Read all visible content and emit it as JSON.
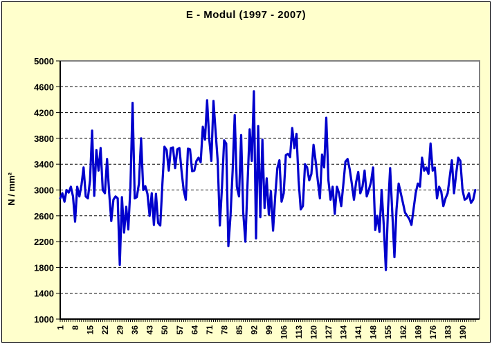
{
  "window": {
    "title": "E - Modul (1997 - 2007)"
  },
  "chart_data": {
    "type": "line",
    "title": "E - Modul (1997 - 2007)",
    "xlabel": "",
    "ylabel": "N / mm²",
    "ylim": [
      1000,
      5000
    ],
    "ytick_step": 400,
    "ytick_labels": [
      "1000",
      "1400",
      "1800",
      "2200",
      "2600",
      "3000",
      "3400",
      "3800",
      "4200",
      "4600",
      "5000"
    ],
    "xtick_interval": 7,
    "xtick_labels": [
      "1",
      "8",
      "15",
      "22",
      "29",
      "36",
      "43",
      "50",
      "57",
      "64",
      "71",
      "78",
      "85",
      "92",
      "99",
      "106",
      "113",
      "120",
      "127",
      "134",
      "141",
      "148",
      "155",
      "162",
      "169",
      "176",
      "183",
      "190"
    ],
    "n_points": 196,
    "grid": "horizontal-dashed",
    "legend": "none",
    "series_color": "#0000CC",
    "background_color": "#FFFFCC",
    "plot_background_color": "#FFFFFF",
    "plot_border_color": "#808080",
    "axis_color": "#000000",
    "values": [
      2870,
      2950,
      2820,
      3000,
      2960,
      3050,
      2900,
      2510,
      3050,
      2900,
      3080,
      3350,
      2900,
      2870,
      3150,
      3920,
      2910,
      3620,
      3300,
      3650,
      3000,
      2950,
      3480,
      2950,
      2520,
      2850,
      2900,
      2870,
      1840,
      2890,
      2340,
      2740,
      2390,
      3050,
      4350,
      2870,
      2890,
      3100,
      3800,
      3000,
      3060,
      2940,
      2600,
      2950,
      2460,
      2940,
      2490,
      2450,
      3100,
      3670,
      3620,
      3300,
      3650,
      3660,
      3340,
      3630,
      3650,
      3300,
      3000,
      2850,
      3640,
      3630,
      3290,
      3300,
      3450,
      3500,
      3430,
      3980,
      3780,
      4390,
      3800,
      3450,
      4380,
      3900,
      3450,
      2450,
      3050,
      3770,
      3720,
      2130,
      2600,
      3300,
      4160,
      3050,
      2900,
      3850,
      2650,
      2200,
      3090,
      3940,
      3450,
      4530,
      2250,
      3990,
      2580,
      3780,
      2720,
      3180,
      2620,
      2980,
      2370,
      2900,
      3340,
      3460,
      2820,
      2950,
      3540,
      3560,
      3510,
      3960,
      3650,
      3870,
      3150,
      2700,
      2750,
      3400,
      3350,
      3150,
      3250,
      3700,
      3450,
      3150,
      2870,
      3550,
      3350,
      4120,
      3150,
      2850,
      3050,
      2630,
      3050,
      2950,
      2750,
      3080,
      3440,
      3480,
      3320,
      3100,
      2850,
      3120,
      3280,
      2950,
      3050,
      3300,
      2900,
      3000,
      3120,
      3350,
      2380,
      2600,
      2350,
      3000,
      2450,
      1760,
      2700,
      3340,
      2650,
      1960,
      2700,
      3100,
      2950,
      2800,
      2650,
      2600,
      2550,
      2460,
      2700,
      2950,
      3100,
      3050,
      3500,
      3300,
      3350,
      3250,
      3720,
      3300,
      3350,
      2870,
      3050,
      2980,
      2750,
      2870,
      2950,
      3200,
      3460,
      2950,
      3250,
      3500,
      3450,
      3000,
      2850,
      2870,
      2950,
      2800,
      2850,
      3000
    ]
  }
}
